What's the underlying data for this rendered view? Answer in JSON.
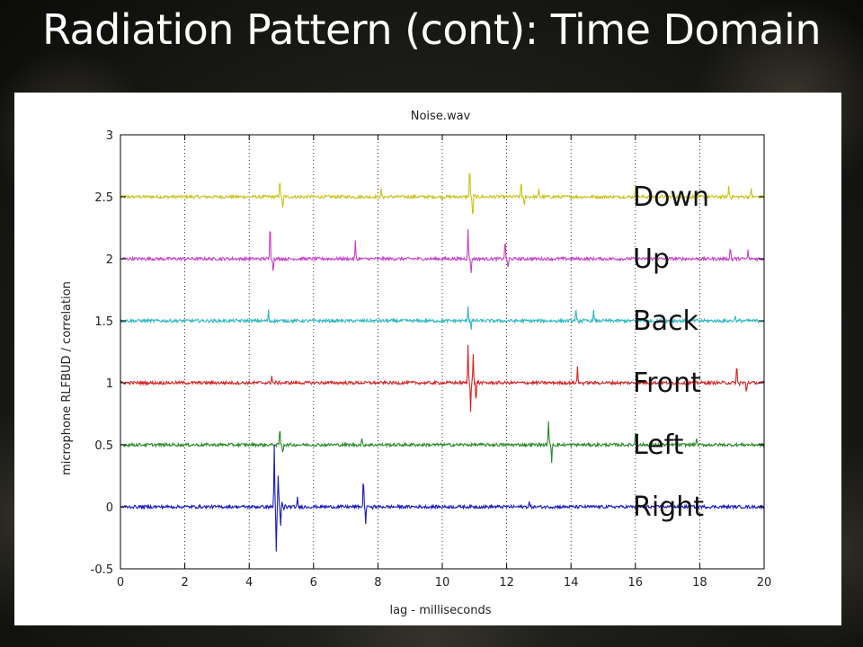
{
  "slide": {
    "title": "Radiation Pattern (cont): Time Domain"
  },
  "chart_data": {
    "type": "line",
    "title": "Noise.wav",
    "xlabel": "lag - milliseconds",
    "ylabel": "microphone RLFBUD / correlation",
    "xlim": [
      0,
      20
    ],
    "ylim": [
      -0.5,
      3
    ],
    "xticks": [
      0,
      2,
      4,
      6,
      8,
      10,
      12,
      14,
      16,
      18,
      20
    ],
    "yticks": [
      -0.5,
      0,
      0.5,
      1,
      1.5,
      2,
      2.5,
      3
    ],
    "ytick_labels": [
      "-0.5",
      "0",
      "0.5",
      "1",
      "1.5",
      "2",
      "2.5",
      "3"
    ],
    "grid": {
      "x": "dotted",
      "y": "none"
    },
    "series": [
      {
        "name": "Down",
        "color": "#c8c21f",
        "baseline": 2.5,
        "peaks": [
          [
            4.95,
            0.16
          ],
          [
            5.05,
            -0.1
          ],
          [
            8.1,
            0.06
          ],
          [
            10.85,
            0.26
          ],
          [
            10.95,
            -0.18
          ],
          [
            12.45,
            0.14
          ],
          [
            12.55,
            -0.08
          ],
          [
            13.0,
            0.06
          ],
          [
            16.0,
            0.07
          ],
          [
            18.9,
            0.09
          ],
          [
            19.6,
            0.07
          ]
        ]
      },
      {
        "name": "Up",
        "color": "#c640c6",
        "baseline": 2.0,
        "peaks": [
          [
            4.65,
            0.32
          ],
          [
            4.75,
            -0.1
          ],
          [
            7.3,
            0.14
          ],
          [
            10.8,
            0.23
          ],
          [
            10.9,
            -0.12
          ],
          [
            11.95,
            0.16
          ],
          [
            12.05,
            -0.08
          ],
          [
            18.95,
            0.1
          ],
          [
            19.5,
            0.07
          ]
        ]
      },
      {
        "name": "Back",
        "color": "#2cb8c0",
        "baseline": 1.5,
        "peaks": [
          [
            4.6,
            0.08
          ],
          [
            10.8,
            0.12
          ],
          [
            10.9,
            -0.06
          ],
          [
            14.15,
            0.1
          ],
          [
            14.7,
            0.08
          ],
          [
            19.1,
            0.05
          ]
        ]
      },
      {
        "name": "Front",
        "color": "#d42424",
        "baseline": 1.0,
        "peaks": [
          [
            4.7,
            0.06
          ],
          [
            10.8,
            0.3
          ],
          [
            10.88,
            -0.2
          ],
          [
            10.96,
            0.22
          ],
          [
            11.05,
            -0.15
          ],
          [
            14.2,
            0.12
          ],
          [
            19.15,
            0.15
          ],
          [
            19.45,
            -0.08
          ]
        ]
      },
      {
        "name": "Left",
        "color": "#2a8a2a",
        "baseline": 0.5,
        "peaks": [
          [
            4.95,
            0.14
          ],
          [
            5.05,
            -0.06
          ],
          [
            7.5,
            0.05
          ],
          [
            13.3,
            0.2
          ],
          [
            13.4,
            -0.13
          ],
          [
            16.0,
            0.1
          ],
          [
            17.9,
            0.06
          ]
        ]
      },
      {
        "name": "Right",
        "color": "#1a1ac2",
        "baseline": 0.0,
        "peaks": [
          [
            4.78,
            0.5
          ],
          [
            4.84,
            -0.35
          ],
          [
            4.9,
            0.22
          ],
          [
            4.98,
            -0.12
          ],
          [
            5.5,
            0.07
          ],
          [
            7.55,
            0.25
          ],
          [
            7.62,
            -0.12
          ],
          [
            12.7,
            0.04
          ]
        ]
      }
    ]
  }
}
